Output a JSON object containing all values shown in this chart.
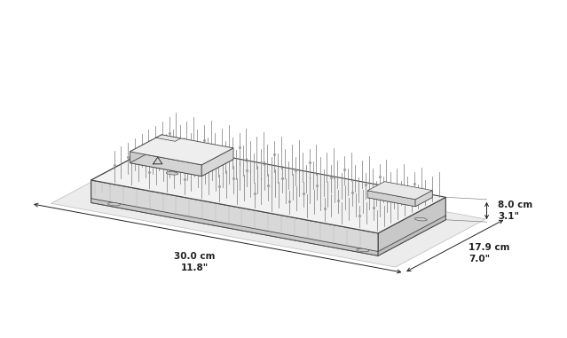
{
  "bg_color": "#ffffff",
  "line_color": "#444444",
  "dim_text_color": "#222222",
  "figsize": [
    6.39,
    3.81
  ],
  "dpi": 100,
  "dim_width_cm": "30.0 cm",
  "dim_width_in": "11.8\"",
  "dim_depth_cm": "17.9 cm",
  "dim_depth_in": "7.0\"",
  "dim_height_cm": "8.0 cm",
  "dim_height_in": "3.1\"",
  "face_top": "#f2f2f2",
  "face_left": "#d8d8d8",
  "face_right": "#e4e4e4",
  "face_edge": "#444444",
  "shadow_face": "#ececec",
  "shadow_edge": "#bbbbbb",
  "pin_color": "#888888",
  "slot_color": "#999999"
}
